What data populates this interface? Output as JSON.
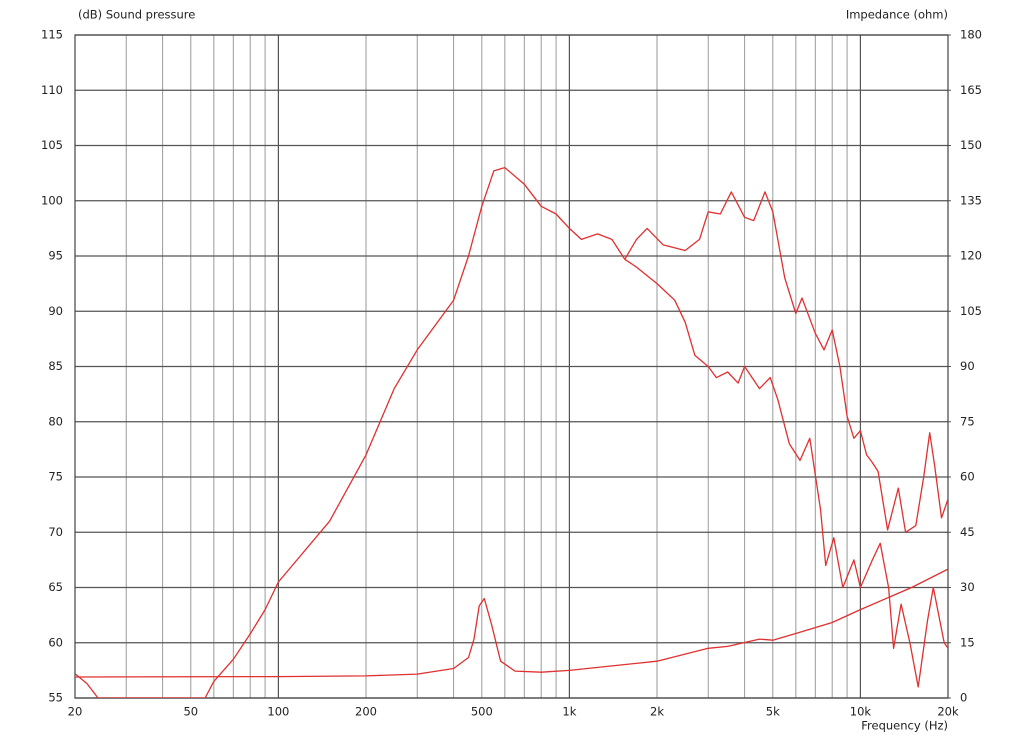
{
  "chart_data": {
    "type": "line",
    "y_label": "(dB)  Sound pressure",
    "y2_label": "Impedance  (ohm)",
    "x_label": "Frequency  (Hz)",
    "xscale": "log",
    "xlim": [
      20,
      20000
    ],
    "xticks": [
      20,
      50,
      100,
      200,
      500,
      {
        "value": 1000,
        "label": "1k"
      },
      {
        "value": 2000,
        "label": "2k"
      },
      {
        "value": 5000,
        "label": "5k"
      },
      {
        "value": 10000,
        "label": "10k"
      },
      {
        "value": 20000,
        "label": "20k"
      }
    ],
    "x_minor_grid": [
      30,
      40,
      60,
      70,
      80,
      90,
      300,
      400,
      600,
      700,
      800,
      900,
      3000,
      4000,
      6000,
      7000,
      8000,
      9000
    ],
    "ylim": [
      55,
      115
    ],
    "yticks": [
      55,
      60,
      65,
      70,
      75,
      80,
      85,
      90,
      95,
      100,
      105,
      110,
      115
    ],
    "y2lim": [
      0,
      180
    ],
    "y2ticks": [
      0,
      15,
      30,
      45,
      60,
      75,
      90,
      105,
      120,
      135,
      150,
      165,
      180
    ],
    "grid": true,
    "series": [
      {
        "color": "#e03030",
        "x": [
          20,
          22,
          24,
          56,
          60,
          70,
          80,
          90,
          100,
          150,
          200,
          250,
          300,
          400,
          450,
          500,
          550,
          600,
          700,
          800,
          900,
          1000,
          1100,
          1250,
          1400,
          1550,
          1700,
          1850,
          2100,
          2500,
          2800,
          3000,
          3300,
          3600,
          4000,
          4300,
          4700,
          5000,
          5500,
          6000,
          6300,
          7000,
          7500,
          8000,
          8500,
          9000,
          9500,
          10000,
          10500,
          11000,
          11500,
          12400,
          13500,
          14300,
          15500,
          16500,
          17300,
          18000,
          19000,
          20000
        ],
        "values": [
          57.2,
          56.3,
          55,
          55,
          56.5,
          58.5,
          60.8,
          63,
          65.5,
          71,
          77,
          83,
          86.5,
          91,
          95,
          99.5,
          102.7,
          103,
          101.5,
          99.5,
          98.8,
          97.5,
          96.5,
          97,
          96.5,
          94.7,
          96.5,
          97.5,
          96,
          95.5,
          96.5,
          99,
          98.8,
          100.8,
          98.5,
          98.2,
          100.8,
          99,
          93,
          89.8,
          91.2,
          88,
          86.5,
          88.3,
          85,
          80.5,
          78.5,
          79.2,
          77,
          76.3,
          75.5,
          70.2,
          74,
          70,
          70.6,
          75,
          79,
          76,
          71.3,
          73
        ]
      },
      {
        "color": "#e03030",
        "x": [
          1550,
          1700,
          2000,
          2300,
          2500,
          2700,
          3000,
          3200,
          3500,
          3800,
          4000,
          4500,
          4900,
          5200,
          5700,
          6200,
          6700,
          7300,
          7600,
          8100,
          8700,
          9500,
          10000,
          11000,
          11700,
          12500,
          13000,
          13800,
          14800,
          15800,
          17000,
          17800,
          19400,
          20000
        ],
        "values": [
          94.7,
          94,
          92.5,
          91,
          89,
          86,
          85,
          84,
          84.5,
          83.5,
          85,
          83,
          84,
          82,
          78,
          76.5,
          78.5,
          72,
          67,
          69.5,
          65,
          67.5,
          65,
          67.5,
          69,
          65,
          59.5,
          63.5,
          60,
          56,
          62,
          65,
          60,
          59.5
        ]
      },
      {
        "color": "#e03030",
        "axis": "y2",
        "x": [
          20,
          100,
          200,
          300,
          400,
          450,
          470,
          490,
          510,
          540,
          580,
          650,
          800,
          1000,
          2000,
          3000,
          3500,
          4500,
          5000,
          6000,
          8000,
          10000,
          15000,
          20000
        ],
        "values": [
          5.7,
          5.8,
          6,
          6.5,
          8,
          11,
          16,
          25,
          27,
          20,
          10,
          7.3,
          7,
          7.5,
          10,
          13.5,
          14,
          16,
          15.7,
          17.5,
          20.5,
          24,
          30,
          35
        ]
      }
    ]
  }
}
